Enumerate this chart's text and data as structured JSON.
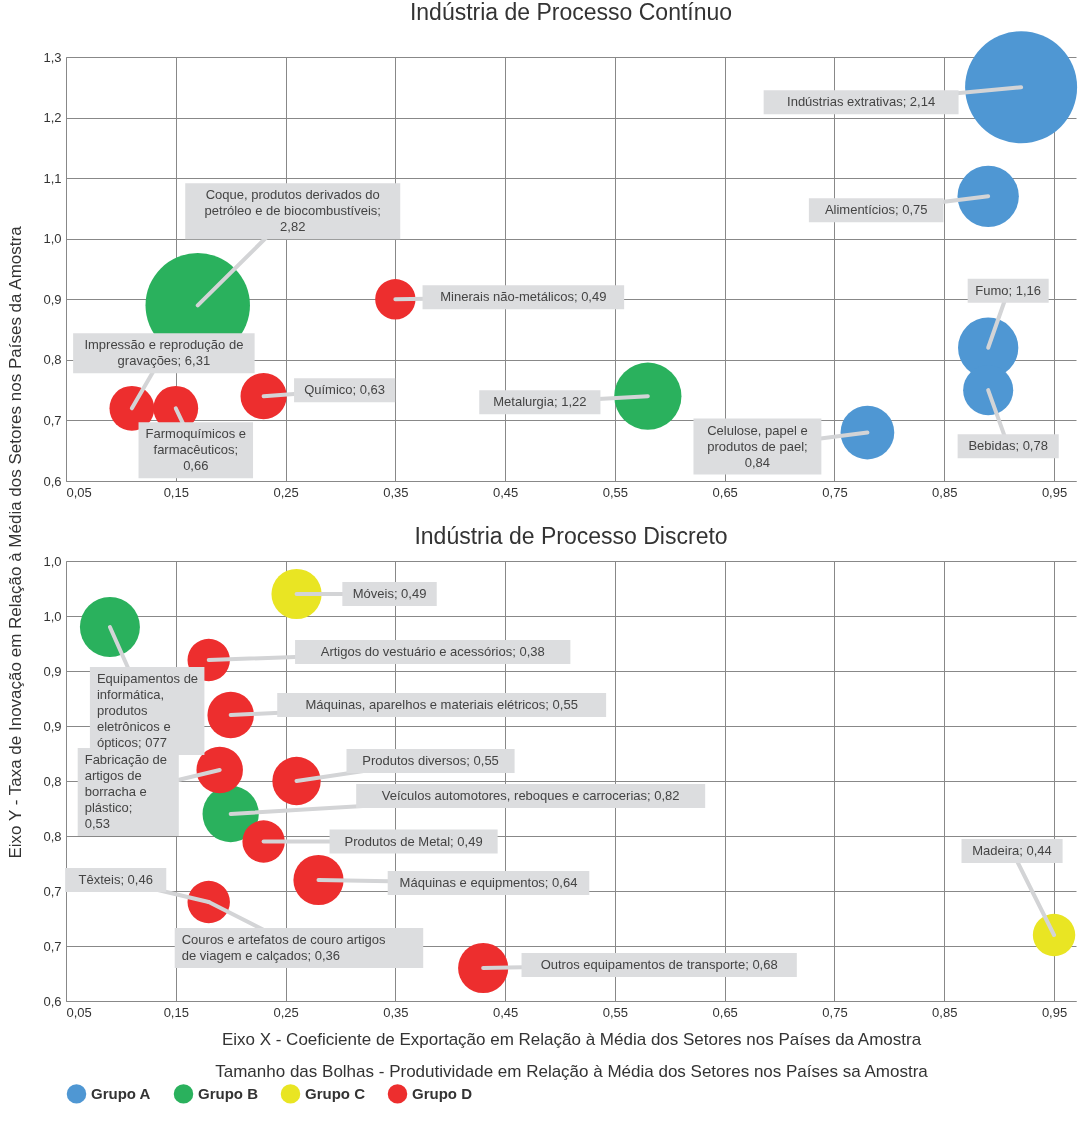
{
  "chart_data": [
    {
      "type": "bubble",
      "title": "Indústria de Processo Contínuo",
      "ylabel": "Eixo Y - Taxa de Inovação em Relação à Média dos Setores nos Países da Amostra",
      "xlim": [
        0.05,
        0.97
      ],
      "ylim": [
        0.6,
        1.3
      ],
      "xticks": [
        {
          "value": 0.05,
          "label": "0,05"
        },
        {
          "value": 0.15,
          "label": "0,15"
        },
        {
          "value": 0.25,
          "label": "0,25"
        },
        {
          "value": 0.35,
          "label": "0,35"
        },
        {
          "value": 0.45,
          "label": "0,45"
        },
        {
          "value": 0.55,
          "label": "0,55"
        },
        {
          "value": 0.65,
          "label": "0,65"
        },
        {
          "value": 0.75,
          "label": "0,75"
        },
        {
          "value": 0.85,
          "label": "0,85"
        },
        {
          "value": 0.95,
          "label": "0,95"
        }
      ],
      "yticks": [
        {
          "value": 0.6,
          "label": "0,6"
        },
        {
          "value": 0.7,
          "label": "0,7"
        },
        {
          "value": 0.8,
          "label": "0,8"
        },
        {
          "value": 0.9,
          "label": "0,9"
        },
        {
          "value": 1.0,
          "label": "1,0"
        },
        {
          "value": 1.1,
          "label": "1,1"
        },
        {
          "value": 1.2,
          "label": "1,2"
        },
        {
          "value": 1.3,
          "label": "1,3"
        }
      ],
      "grid": true,
      "legend": false,
      "marker": "circle",
      "series": [
        {
          "color": "#4f97d3",
          "x": [
            0.92,
            0.89,
            0.89,
            0.89,
            0.78
          ],
          "values": [
            1.25,
            1.07,
            0.82,
            0.75,
            0.68
          ],
          "sizes": [
            1,
            0.3,
            0.29,
            0.2,
            0.23
          ]
        },
        {
          "color": "#2ab15d",
          "x": [
            0.17,
            0.58
          ],
          "values": [
            0.89,
            0.74
          ],
          "sizes": [
            0.87,
            0.36
          ]
        },
        {
          "color": "#ed2e2e",
          "x": [
            0.35,
            0.23,
            0.11,
            0.15
          ],
          "values": [
            0.9,
            0.74,
            0.72,
            0.72
          ],
          "sizes": [
            0.13,
            0.17,
            0.16,
            0.16
          ]
        }
      ],
      "annotations": [
        {
          "text": "Indústrias extrativas; 2,14",
          "x": 0.92,
          "y": 1.25
        },
        {
          "text": "Alimentícios; 0,75",
          "x": 0.89,
          "y": 1.07
        },
        {
          "text": "Fumo; 1,16",
          "x": 0.89,
          "y": 0.82
        },
        {
          "text": "Bebidas; 0,78",
          "x": 0.89,
          "y": 0.75
        },
        {
          "text": "Celulose, papel e produtos de pael; 0,84",
          "x": 0.78,
          "y": 0.68
        },
        {
          "text": "Coque, produtos derivados do petróleo e de biocombustíveis; 2,82",
          "x": 0.17,
          "y": 0.89
        },
        {
          "text": "Metalurgia; 1,22",
          "x": 0.58,
          "y": 0.74
        },
        {
          "text": "Minerais não-metálicos; 0,49",
          "x": 0.35,
          "y": 0.9
        },
        {
          "text": "Químico; 0,63",
          "x": 0.23,
          "y": 0.74
        },
        {
          "text": "Impressão e reprodução de gravações; 6,31",
          "x": 0.11,
          "y": 0.72
        },
        {
          "text": "Farmoquímicos e farmacêuticos; 0,66",
          "x": 0.15,
          "y": 0.72
        }
      ]
    },
    {
      "type": "bubble",
      "title": "Indústria de Processo Discreto",
      "xlabel": "Eixo X - Coeficiente de Exportação em Relação à Média dos Setores nos Países da Amostra",
      "xlim": [
        0.05,
        0.97
      ],
      "ylim": [
        0.6,
        1.0
      ],
      "xticks": [
        {
          "value": 0.05,
          "label": "0,05"
        },
        {
          "value": 0.15,
          "label": "0,15"
        },
        {
          "value": 0.25,
          "label": "0,25"
        },
        {
          "value": 0.35,
          "label": "0,35"
        },
        {
          "value": 0.45,
          "label": "0,45"
        },
        {
          "value": 0.55,
          "label": "0,55"
        },
        {
          "value": 0.65,
          "label": "0,65"
        },
        {
          "value": 0.75,
          "label": "0,75"
        },
        {
          "value": 0.85,
          "label": "0,85"
        },
        {
          "value": 0.95,
          "label": "0,95"
        }
      ],
      "yticks": [
        {
          "value": 0.6,
          "label": "0,6"
        },
        {
          "value": 0.65,
          "label": "0,7"
        },
        {
          "value": 0.7,
          "label": "0,7"
        },
        {
          "value": 0.75,
          "label": "0,8"
        },
        {
          "value": 0.8,
          "label": "0,8"
        },
        {
          "value": 0.85,
          "label": "0,9"
        },
        {
          "value": 0.9,
          "label": "0,9"
        },
        {
          "value": 0.95,
          "label": "1,0"
        },
        {
          "value": 1.0,
          "label": "1,0"
        }
      ],
      "grid": true,
      "legend": "bottom",
      "marker": "circle",
      "series": [
        {
          "name": "Grupo A",
          "color": "#4f97d3"
        },
        {
          "name": "Grupo B",
          "color": "#2ab15d",
          "x": [
            0.09,
            0.2
          ],
          "values": [
            0.94,
            0.77
          ],
          "sizes": [
            1,
            0.88
          ]
        },
        {
          "name": "Grupo C",
          "color": "#e9e523",
          "x": [
            0.26,
            0.95
          ],
          "values": [
            0.97,
            0.66
          ],
          "sizes": [
            0.7,
            0.5
          ]
        },
        {
          "name": "Grupo D",
          "color": "#ed2e2e",
          "x": [
            0.18,
            0.2,
            0.19,
            0.26,
            0.23,
            0.28,
            0.18,
            0.43
          ],
          "values": [
            0.91,
            0.86,
            0.81,
            0.8,
            0.745,
            0.71,
            0.69,
            0.63
          ],
          "sizes": [
            0.5,
            0.6,
            0.6,
            0.65,
            0.5,
            0.7,
            0.5,
            0.7
          ]
        }
      ],
      "annotations": [
        "Tamanho das Bolhas - Produtividade em Relação à Média dos Setores nos Países sa Amostra",
        {
          "text": "Equipamentos de informática, produtos eletrônicos e ópticos; 077",
          "x": 0.09,
          "y": 0.94
        },
        {
          "text": "Veículos automotores, reboques e carrocerias; 0,82",
          "x": 0.2,
          "y": 0.77
        },
        {
          "text": "Móveis; 0,49",
          "x": 0.26,
          "y": 0.97
        },
        {
          "text": "Madeira; 0,44",
          "x": 0.95,
          "y": 0.66
        },
        {
          "text": "Artigos do vestuário e acessórios; 0,38",
          "x": 0.18,
          "y": 0.91
        },
        {
          "text": "Máquinas, aparelhos e materiais elétricos; 0,55",
          "x": 0.2,
          "y": 0.86
        },
        {
          "text": "Fabricação de artigos de borracha e plástico; 0,53",
          "x": 0.19,
          "y": 0.81
        },
        {
          "text": "Produtos diversos; 0,55",
          "x": 0.26,
          "y": 0.8
        },
        {
          "text": "Produtos de Metal; 0,49",
          "x": 0.23,
          "y": 0.745
        },
        {
          "text": "Máquinas e equipmentos; 0,64",
          "x": 0.28,
          "y": 0.71
        },
        {
          "text": "Têxteis; 0,46",
          "x": 0.18,
          "y": 0.69
        },
        {
          "text": "Couros e artefatos de couro artigos de viagem e calçados; 0,36",
          "x": 0.18,
          "y": 0.69
        },
        {
          "text": "Outros equipamentos de transporte; 0,68",
          "x": 0.43,
          "y": 0.63
        }
      ]
    }
  ]
}
